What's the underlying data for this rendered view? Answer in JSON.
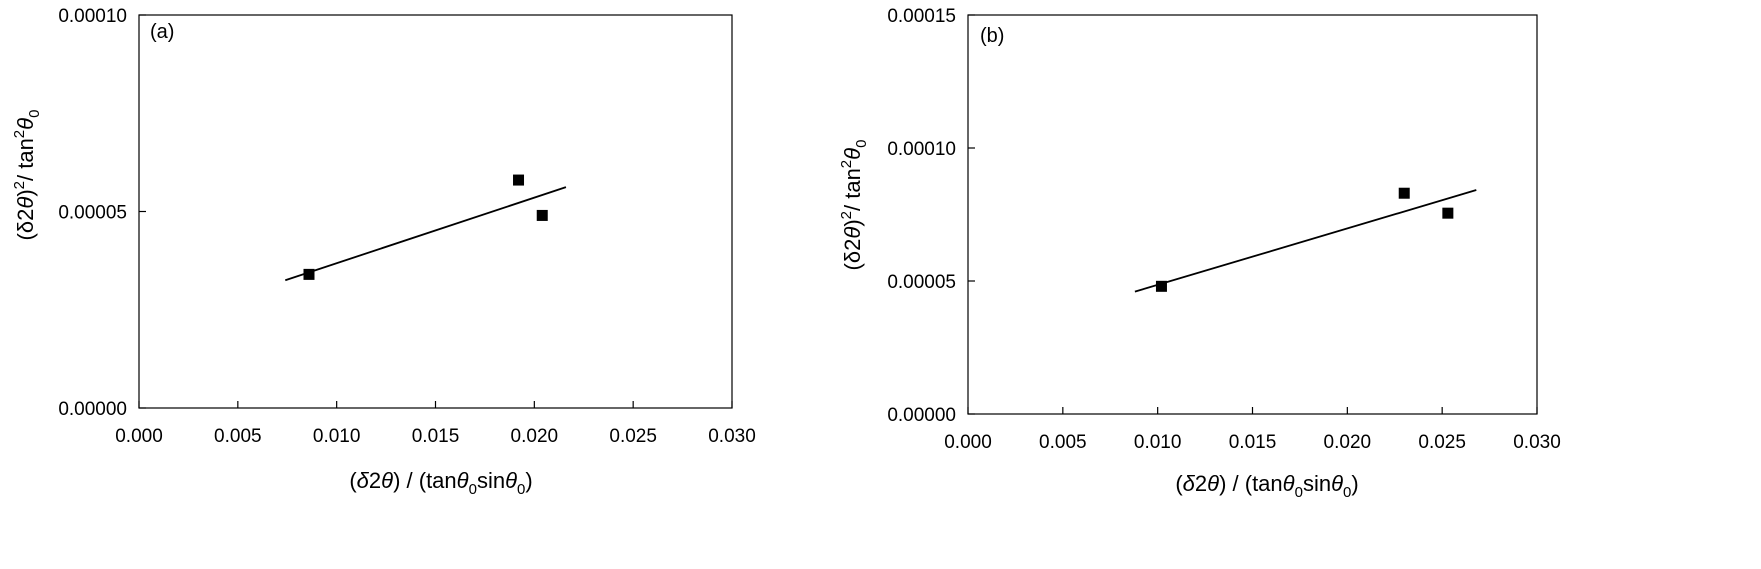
{
  "figure": {
    "colors": {
      "axis": "#000000",
      "marker": "#000000",
      "line": "#000000",
      "background": "#ffffff"
    }
  },
  "chart_data": [
    {
      "type": "scatter",
      "panel_label": "(a)",
      "xlim": [
        0.0,
        0.03
      ],
      "ylim": [
        0.0,
        0.0001
      ],
      "xticks": [
        "0.000",
        "0.005",
        "0.010",
        "0.015",
        "0.020",
        "0.025",
        "0.030"
      ],
      "xtick_values": [
        0.0,
        0.005,
        0.01,
        0.015,
        0.02,
        0.025,
        0.03
      ],
      "yticks": [
        "0.00000",
        "0.00005",
        "0.00010"
      ],
      "ytick_values": [
        0.0,
        5e-05,
        0.0001
      ],
      "xlabel": "(δ2θ) / (tanθ0sinθ0)",
      "ylabel": "(δ2θ)2/ tan2θ0",
      "grid": false,
      "series": [
        {
          "marker": "square",
          "x": [
            0.0086,
            0.0192,
            0.0204
          ],
          "y": [
            3.4e-05,
            5.8e-05,
            4.9e-05
          ]
        }
      ],
      "fit_line": {
        "x": [
          0.0074,
          0.0216
        ],
        "y": [
          3.25e-05,
          5.62e-05
        ]
      }
    },
    {
      "type": "scatter",
      "panel_label": "(b)",
      "xlim": [
        0.0,
        0.03
      ],
      "ylim": [
        0.0,
        0.00015
      ],
      "xticks": [
        "0.000",
        "0.005",
        "0.010",
        "0.015",
        "0.020",
        "0.025",
        "0.030"
      ],
      "xtick_values": [
        0.0,
        0.005,
        0.01,
        0.015,
        0.02,
        0.025,
        0.03
      ],
      "yticks": [
        "0.00000",
        "0.00005",
        "0.00010",
        "0.00015"
      ],
      "ytick_values": [
        0.0,
        5e-05,
        0.0001,
        0.00015
      ],
      "xlabel": "(δ2θ) / (tanθ0sinθ0)",
      "ylabel": "(δ2θ)2/ tan2θ0",
      "grid": false,
      "series": [
        {
          "marker": "square",
          "x": [
            0.0102,
            0.023,
            0.0253
          ],
          "y": [
            4.8e-05,
            8.3e-05,
            7.55e-05
          ]
        }
      ],
      "fit_line": {
        "x": [
          0.0088,
          0.0268
        ],
        "y": [
          4.6e-05,
          8.42e-05
        ]
      }
    }
  ]
}
